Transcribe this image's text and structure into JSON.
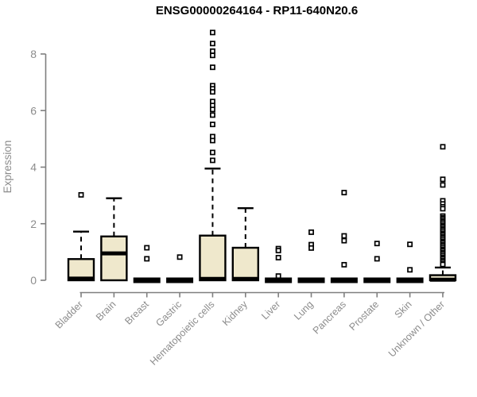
{
  "chart_data": {
    "type": "boxplot",
    "title": "ENSG00000264164 - RP11-640N20.6",
    "ylabel": "Expression",
    "xlabel": "",
    "ylim": [
      0,
      8.8
    ],
    "yticks": [
      0,
      2,
      4,
      6,
      8
    ],
    "grid": false,
    "legend": "none",
    "categories": [
      "Bladder",
      "Brain",
      "Breast",
      "Gastric",
      "Hematopoietic cells",
      "Kidney",
      "Liver",
      "Lung",
      "Pancreas",
      "Prostate",
      "Skin",
      "Unknown / Other"
    ],
    "boxes": [
      {
        "category": "Bladder",
        "q1": 0,
        "median": 0.06,
        "q3": 0.75,
        "whisker_low": 0,
        "whisker_high": 1.72,
        "outliers": [
          3.02
        ]
      },
      {
        "category": "Brain",
        "q1": 0,
        "median": 0.95,
        "q3": 1.55,
        "whisker_low": 0,
        "whisker_high": 2.9,
        "outliers": []
      },
      {
        "category": "Breast",
        "q1": 0,
        "median": 0,
        "q3": 0,
        "whisker_low": 0,
        "whisker_high": 0,
        "outliers": [
          1.15,
          0.76
        ]
      },
      {
        "category": "Gastric",
        "q1": 0,
        "median": 0,
        "q3": 0,
        "whisker_low": 0,
        "whisker_high": 0,
        "outliers": [
          0.82
        ]
      },
      {
        "category": "Hematopoietic cells",
        "q1": 0,
        "median": 0.05,
        "q3": 1.58,
        "whisker_low": 0,
        "whisker_high": 3.95,
        "outliers": [
          8.76,
          8.37,
          8.1,
          7.95,
          7.53,
          6.88,
          6.77,
          6.66,
          6.32,
          6.18,
          6.04,
          5.84,
          5.51,
          5.08,
          4.94,
          4.52,
          4.24
        ]
      },
      {
        "category": "Kidney",
        "q1": 0,
        "median": 0.05,
        "q3": 1.15,
        "whisker_low": 0,
        "whisker_high": 2.55,
        "outliers": []
      },
      {
        "category": "Liver",
        "q1": 0,
        "median": 0,
        "q3": 0,
        "whisker_low": 0,
        "whisker_high": 0,
        "outliers": [
          1.12,
          1.05,
          0.8,
          0.15
        ]
      },
      {
        "category": "Lung",
        "q1": 0,
        "median": 0,
        "q3": 0,
        "whisker_low": 0,
        "whisker_high": 0,
        "outliers": [
          1.7,
          1.26,
          1.14
        ]
      },
      {
        "category": "Pancreas",
        "q1": 0,
        "median": 0,
        "q3": 0,
        "whisker_low": 0,
        "whisker_high": 0,
        "outliers": [
          3.1,
          1.57,
          1.4,
          0.55
        ]
      },
      {
        "category": "Prostate",
        "q1": 0,
        "median": 0,
        "q3": 0,
        "whisker_low": 0,
        "whisker_high": 0,
        "outliers": [
          1.3,
          0.76
        ]
      },
      {
        "category": "Skin",
        "q1": 0,
        "median": 0,
        "q3": 0,
        "whisker_low": 0,
        "whisker_high": 0,
        "outliers": [
          1.27,
          0.37
        ]
      },
      {
        "category": "Unknown / Other",
        "q1": 0,
        "median": 0.02,
        "q3": 0.18,
        "whisker_low": 0,
        "whisker_high": 0.45,
        "outliers": [
          4.72,
          3.57,
          3.37,
          2.81,
          2.7,
          2.6,
          2.53,
          2.27,
          2.21,
          2.16,
          2.1,
          2.05,
          1.99,
          1.93,
          1.88,
          1.82,
          1.77,
          1.71,
          1.65,
          1.6,
          1.54,
          1.49,
          1.43,
          1.37,
          1.32,
          1.26,
          1.21,
          1.15,
          1.09,
          1.04,
          0.98,
          0.93,
          0.87,
          0.81,
          0.76,
          0.7,
          0.65,
          0.59,
          0.56
        ]
      }
    ]
  },
  "colors": {
    "background": "#ffffff",
    "box_fill": "#efe8cc",
    "box_border": "#000000",
    "median": "#000000",
    "axis": "#7f7f7f",
    "tick_label": "#8c8c8c",
    "axis_label": "#8c8c8c",
    "title": "#000000",
    "outlier_fill": "#ffffff",
    "outlier_border": "#000000"
  }
}
